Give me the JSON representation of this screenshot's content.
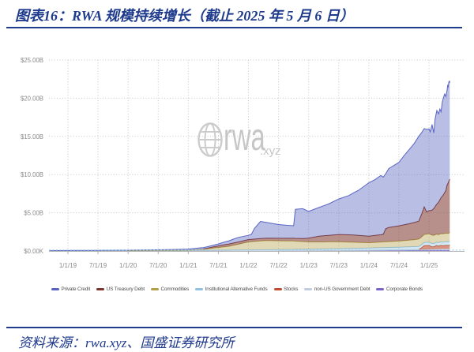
{
  "title": "图表16：RWA 规模持续增长（截止 2025 年 5 月 6 日）",
  "source": "资料来源：rwa.xyz、国盛证券研究所",
  "watermark": {
    "icon": "globe-icon",
    "text": "rwa",
    "suffix": ".xyz"
  },
  "colors": {
    "accent_navy": "#1e3a8c",
    "grid": "#c6c6c6",
    "axis_label": "#8a8a8a",
    "zero_line_blue": "#a5d0e8"
  },
  "chart_data": {
    "type": "area",
    "stacked": true,
    "title": "",
    "xlabel": "",
    "ylabel": "",
    "ylim": [
      0,
      25
    ],
    "grid": true,
    "legend_position": "bottom",
    "y_tick_values": [
      0,
      5,
      10,
      15,
      20,
      25
    ],
    "y_tick_labels": [
      "$0.00K",
      "$5.00B",
      "$10.00B",
      "$15.00B",
      "$20.00B",
      "$25.00B"
    ],
    "x_tick_times": [
      2019.0,
      2019.5,
      2020.0,
      2020.5,
      2021.0,
      2021.5,
      2022.0,
      2022.5,
      2023.0,
      2023.5,
      2024.0,
      2024.5,
      2025.0
    ],
    "x_tick_labels": [
      "1/1/19",
      "7/1/19",
      "1/1/20",
      "7/1/20",
      "1/1/21",
      "7/1/21",
      "1/1/22",
      "7/1/22",
      "1/1/23",
      "7/1/23",
      "1/1/24",
      "7/1/24",
      "1/1/25"
    ],
    "unit": "$B",
    "series": [
      {
        "key": "corporate_bonds",
        "label": "Corporate Bonds",
        "color": "#7a64c8",
        "fill": "rgba(122,100,200,0.85)",
        "points": [
          [
            2018.69,
            0
          ],
          [
            2023.0,
            0.01
          ],
          [
            2024.0,
            0.03
          ],
          [
            2024.5,
            0.04
          ],
          [
            2024.9,
            0.06
          ],
          [
            2025.0,
            0.08
          ],
          [
            2025.345,
            0.1
          ]
        ]
      },
      {
        "key": "non_us_government_debt",
        "label": "non-US Government Debt",
        "color": "#c3cbe0",
        "fill": "rgba(195,203,224,0.5)",
        "points": [
          [
            2018.69,
            0
          ],
          [
            2022.0,
            0.01
          ],
          [
            2023.0,
            0.02
          ],
          [
            2023.5,
            0.03
          ],
          [
            2024.0,
            0.05
          ],
          [
            2024.5,
            0.1
          ],
          [
            2024.83,
            0.12
          ],
          [
            2025.0,
            0.15
          ],
          [
            2025.345,
            0.2
          ]
        ]
      },
      {
        "key": "stocks",
        "label": "Stocks",
        "color": "#bf4f2c",
        "fill": "rgba(191,79,44,0.6)",
        "points": [
          [
            2018.69,
            0
          ],
          [
            2024.83,
            0.01
          ],
          [
            2024.88,
            0.25
          ],
          [
            2024.92,
            0.5
          ],
          [
            2024.96,
            0.48
          ],
          [
            2025.0,
            0.5
          ],
          [
            2025.04,
            0.33
          ],
          [
            2025.08,
            0.3
          ],
          [
            2025.12,
            0.45
          ],
          [
            2025.16,
            0.38
          ],
          [
            2025.2,
            0.45
          ],
          [
            2025.24,
            0.4
          ],
          [
            2025.28,
            0.45
          ],
          [
            2025.32,
            0.42
          ],
          [
            2025.345,
            0.5
          ]
        ]
      },
      {
        "key": "institutional_alternative_funds",
        "label": "Institutional Alternative Funds",
        "color": "#92c2e2",
        "fill": "rgba(146,194,226,0.4)",
        "points": [
          [
            2018.69,
            0.02
          ],
          [
            2020.0,
            0.03
          ],
          [
            2021.0,
            0.05
          ],
          [
            2021.5,
            0.08
          ],
          [
            2022.0,
            0.12
          ],
          [
            2022.5,
            0.15
          ],
          [
            2023.0,
            0.2
          ],
          [
            2023.5,
            0.25
          ],
          [
            2024.0,
            0.3
          ],
          [
            2024.5,
            0.35
          ],
          [
            2024.83,
            0.4
          ],
          [
            2024.92,
            0.42
          ],
          [
            2025.0,
            0.45
          ],
          [
            2025.1,
            0.42
          ],
          [
            2025.2,
            0.48
          ],
          [
            2025.345,
            0.5
          ]
        ]
      },
      {
        "key": "commodities",
        "label": "Commodities",
        "color": "#b3a048",
        "fill": "rgba(179,160,72,0.4)",
        "points": [
          [
            2018.69,
            0
          ],
          [
            2020.75,
            0.02
          ],
          [
            2021.0,
            0.03
          ],
          [
            2021.17,
            0.1
          ],
          [
            2021.33,
            0.22
          ],
          [
            2021.5,
            0.35
          ],
          [
            2021.67,
            0.5
          ],
          [
            2021.83,
            0.75
          ],
          [
            2022.0,
            1.05
          ],
          [
            2022.1,
            1.1
          ],
          [
            2022.2,
            1.15
          ],
          [
            2022.3,
            1.2
          ],
          [
            2022.5,
            1.15
          ],
          [
            2022.75,
            1.1
          ],
          [
            2023.0,
            0.95
          ],
          [
            2023.25,
            0.92
          ],
          [
            2023.5,
            0.9
          ],
          [
            2023.75,
            0.8
          ],
          [
            2024.0,
            0.7
          ],
          [
            2024.25,
            0.75
          ],
          [
            2024.5,
            0.8
          ],
          [
            2024.75,
            0.9
          ],
          [
            2024.92,
            1.05
          ],
          [
            2025.0,
            1.1
          ],
          [
            2025.15,
            1.05
          ],
          [
            2025.25,
            1.1
          ],
          [
            2025.345,
            1.1
          ]
        ]
      },
      {
        "key": "us_treasury_debt",
        "label": "US Treasury Debt",
        "color": "#7c342e",
        "fill": "rgba(124,52,46,0.55)",
        "points": [
          [
            2018.69,
            0
          ],
          [
            2021.25,
            0
          ],
          [
            2021.42,
            0.15
          ],
          [
            2021.58,
            0.28
          ],
          [
            2021.75,
            0.3
          ],
          [
            2022.0,
            0.3
          ],
          [
            2022.5,
            0.33
          ],
          [
            2022.75,
            0.35
          ],
          [
            2022.9,
            0.4
          ],
          [
            2023.0,
            0.5
          ],
          [
            2023.17,
            0.75
          ],
          [
            2023.33,
            0.85
          ],
          [
            2023.5,
            0.95
          ],
          [
            2023.75,
            0.95
          ],
          [
            2024.0,
            0.85
          ],
          [
            2024.1,
            0.9
          ],
          [
            2024.2,
            0.95
          ],
          [
            2024.24,
            1.0
          ],
          [
            2024.28,
            1.7
          ],
          [
            2024.33,
            1.85
          ],
          [
            2024.5,
            2.0
          ],
          [
            2024.67,
            2.15
          ],
          [
            2024.83,
            2.35
          ],
          [
            2024.88,
            3.0
          ],
          [
            2024.92,
            3.6
          ],
          [
            2024.96,
            2.9
          ],
          [
            2025.0,
            3.0
          ],
          [
            2025.04,
            3.2
          ],
          [
            2025.08,
            3.5
          ],
          [
            2025.12,
            3.85
          ],
          [
            2025.16,
            4.25
          ],
          [
            2025.2,
            4.7
          ],
          [
            2025.24,
            5.1
          ],
          [
            2025.28,
            5.6
          ],
          [
            2025.3,
            6.3
          ],
          [
            2025.32,
            6.6
          ],
          [
            2025.335,
            6.9
          ],
          [
            2025.345,
            7.0
          ]
        ]
      },
      {
        "key": "private_credit",
        "label": "Private Credit",
        "color": "#5964c2",
        "fill": "rgba(89,100,194,0.42)",
        "points": [
          [
            2018.69,
            0.02
          ],
          [
            2019.0,
            0.03
          ],
          [
            2019.5,
            0.04
          ],
          [
            2020.0,
            0.05
          ],
          [
            2020.5,
            0.08
          ],
          [
            2021.0,
            0.15
          ],
          [
            2021.17,
            0.2
          ],
          [
            2021.33,
            0.2
          ],
          [
            2021.5,
            0.25
          ],
          [
            2021.67,
            0.4
          ],
          [
            2021.83,
            0.6
          ],
          [
            2022.0,
            0.55
          ],
          [
            2022.05,
            0.65
          ],
          [
            2022.1,
            1.4
          ],
          [
            2022.2,
            2.25
          ],
          [
            2022.3,
            2.05
          ],
          [
            2022.5,
            1.8
          ],
          [
            2022.65,
            1.7
          ],
          [
            2022.75,
            1.65
          ],
          [
            2022.78,
            3.8
          ],
          [
            2022.9,
            3.9
          ],
          [
            2023.0,
            3.5
          ],
          [
            2023.17,
            3.75
          ],
          [
            2023.33,
            4.1
          ],
          [
            2023.5,
            4.65
          ],
          [
            2023.67,
            5.15
          ],
          [
            2023.83,
            5.9
          ],
          [
            2024.0,
            7.0
          ],
          [
            2024.1,
            7.3
          ],
          [
            2024.2,
            7.75
          ],
          [
            2024.28,
            7.2
          ],
          [
            2024.33,
            7.7
          ],
          [
            2024.5,
            8.3
          ],
          [
            2024.58,
            9.0
          ],
          [
            2024.67,
            9.7
          ],
          [
            2024.75,
            10.3
          ],
          [
            2024.83,
            11.1
          ],
          [
            2024.88,
            10.65
          ],
          [
            2024.92,
            10.25
          ],
          [
            2024.96,
            10.8
          ],
          [
            2025.0,
            10.7
          ],
          [
            2025.02,
            10.3
          ],
          [
            2025.05,
            11.2
          ],
          [
            2025.08,
            9.9
          ],
          [
            2025.1,
            11.45
          ],
          [
            2025.13,
            12.25
          ],
          [
            2025.16,
            11.55
          ],
          [
            2025.18,
            11.9
          ],
          [
            2025.2,
            11.25
          ],
          [
            2025.22,
            12.3
          ],
          [
            2025.24,
            12.7
          ],
          [
            2025.26,
            12.9
          ],
          [
            2025.28,
            12.3
          ],
          [
            2025.3,
            12.4
          ],
          [
            2025.31,
            12.9
          ],
          [
            2025.32,
            12.6
          ],
          [
            2025.33,
            13.0
          ],
          [
            2025.34,
            12.9
          ],
          [
            2025.345,
            12.6
          ]
        ]
      }
    ],
    "legend_order": [
      "private_credit",
      "us_treasury_debt",
      "commodities",
      "institutional_alternative_funds",
      "stocks",
      "non_us_government_debt",
      "corporate_bonds"
    ]
  }
}
